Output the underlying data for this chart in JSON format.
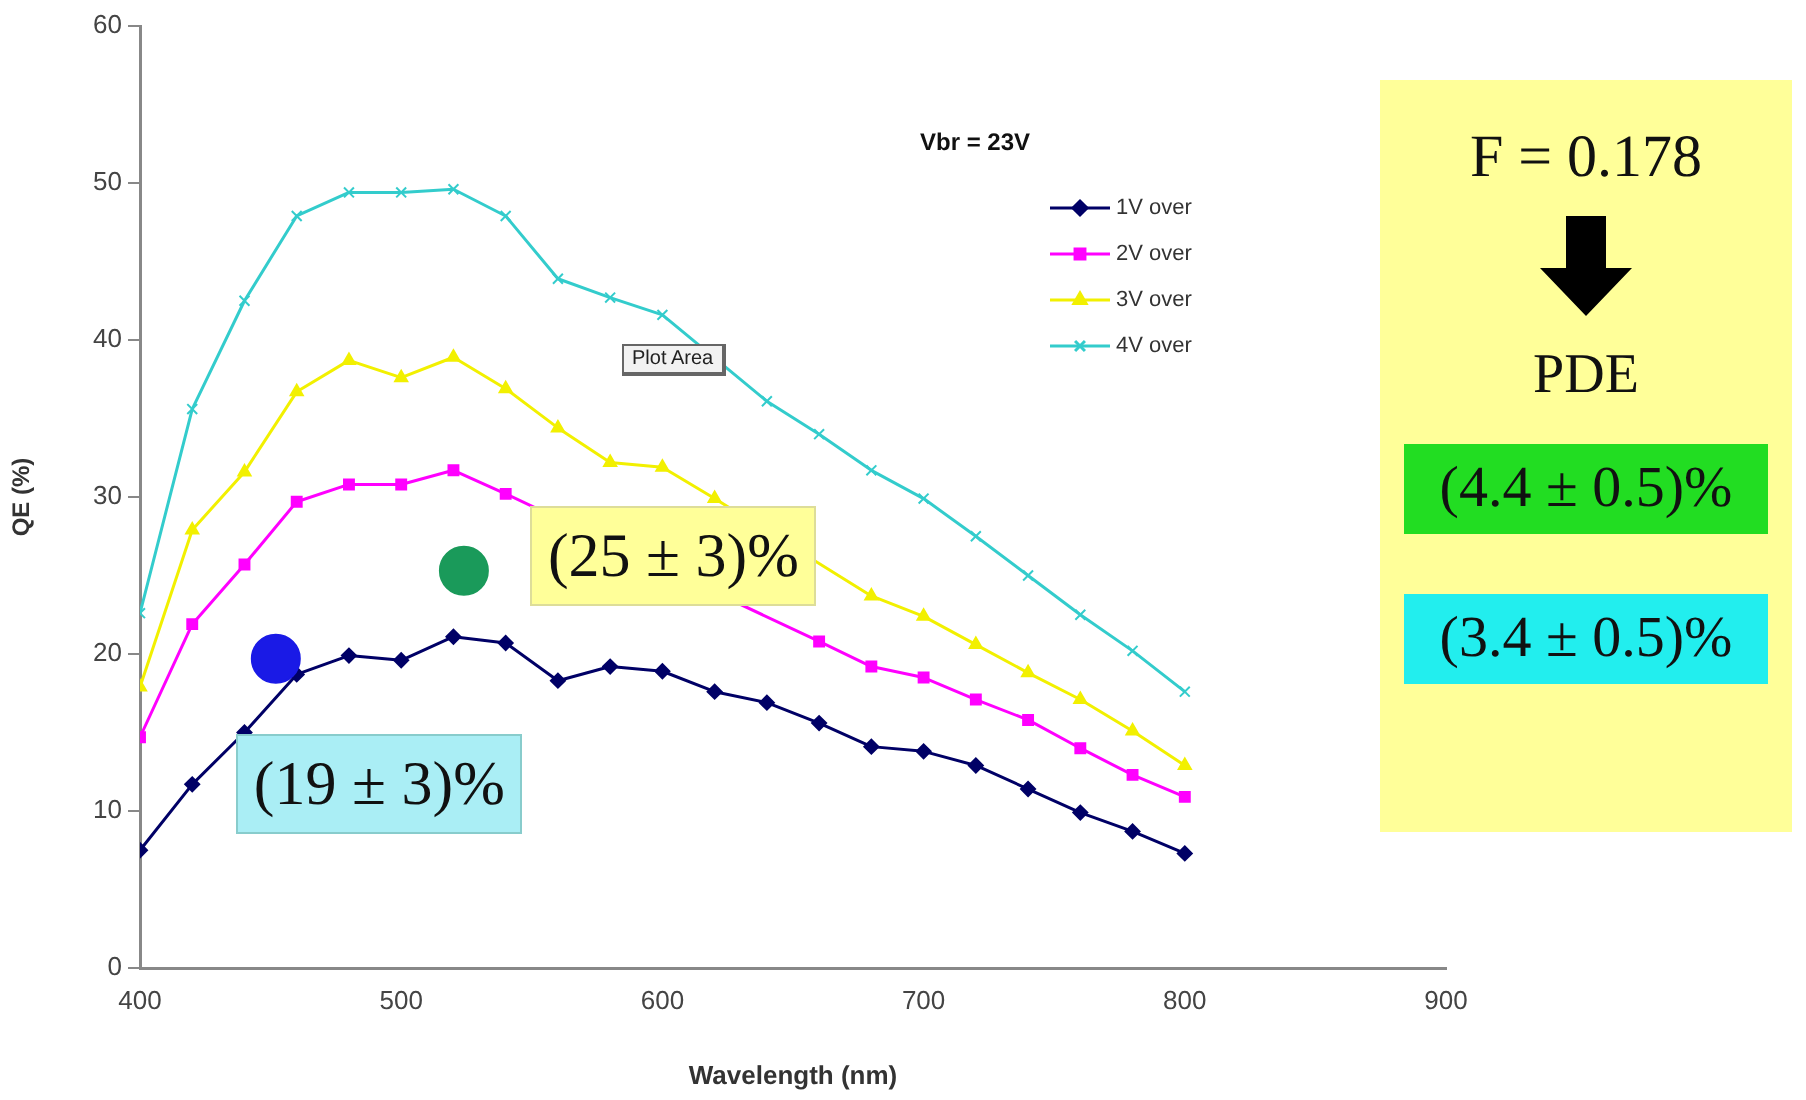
{
  "chart_data": {
    "type": "line",
    "xlabel": "Wavelength (nm)",
    "ylabel": "QE (%)",
    "x": [
      400,
      420,
      440,
      460,
      480,
      500,
      520,
      540,
      560,
      580,
      600,
      620,
      640,
      660,
      680,
      700,
      720,
      740,
      760,
      780,
      800
    ],
    "series": [
      {
        "name": "1V over",
        "color": "#000066",
        "marker": "diamond",
        "values": [
          7.5,
          11.7,
          15.0,
          18.7,
          19.9,
          19.6,
          21.1,
          20.7,
          18.3,
          19.2,
          18.9,
          17.6,
          16.9,
          15.6,
          14.1,
          13.8,
          12.9,
          11.4,
          9.9,
          8.7,
          7.3
        ]
      },
      {
        "name": "2V over",
        "color": "#ff00ff",
        "marker": "square",
        "values": [
          14.7,
          21.9,
          25.7,
          29.7,
          30.8,
          30.8,
          31.7,
          30.2,
          null,
          null,
          null,
          null,
          null,
          20.8,
          19.2,
          18.5,
          17.1,
          15.8,
          14.0,
          12.3,
          10.9
        ]
      },
      {
        "name": "3V over",
        "color": "#f2f000",
        "marker": "triangle",
        "values": [
          17.9,
          27.9,
          31.6,
          36.7,
          38.7,
          37.6,
          38.9,
          36.9,
          34.4,
          32.2,
          31.9,
          29.9,
          null,
          null,
          23.7,
          22.4,
          20.6,
          18.8,
          17.1,
          15.1,
          12.9
        ]
      },
      {
        "name": "4V over",
        "color": "#33cccc",
        "marker": "cross",
        "values": [
          22.6,
          35.6,
          42.5,
          47.9,
          49.4,
          49.4,
          49.6,
          47.9,
          43.9,
          42.7,
          41.6,
          null,
          36.1,
          34.0,
          31.7,
          29.9,
          27.5,
          25.0,
          22.5,
          20.2,
          17.6
        ]
      },
      {
        "type": "scatter",
        "color": "#1a1ae6",
        "marker": "circle",
        "x": [
          452
        ],
        "values": [
          19.7
        ]
      },
      {
        "type": "scatter",
        "color": "#1a9a5a",
        "marker": "circle",
        "x": [
          524
        ],
        "values": [
          25.3
        ]
      }
    ],
    "xlim": [
      400,
      900
    ],
    "xticks": [
      400,
      500,
      600,
      700,
      800,
      900
    ],
    "ylim": [
      0,
      60
    ],
    "yticks": [
      0,
      10,
      20,
      30,
      40,
      50,
      60
    ],
    "grid": false,
    "legend": "top right",
    "annotations": [
      "Vbr = 23V",
      "Plot Area",
      {
        "text": "(19 ± 3)%",
        "x": 452,
        "y": 19.7
      },
      {
        "text": "(25 ± 3)%",
        "x": 524,
        "y": 25.3
      },
      "F = 0.178",
      "PDE",
      "(4.4 ± 0.5)%",
      "(3.4 ± 0.5)%"
    ]
  }
}
